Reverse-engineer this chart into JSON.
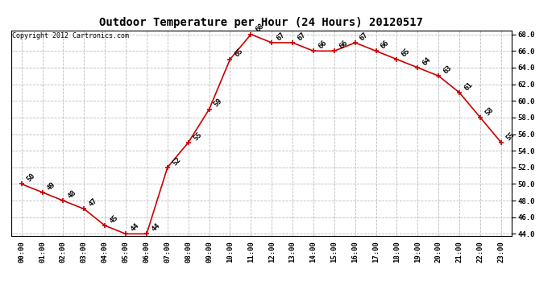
{
  "title": "Outdoor Temperature per Hour (24 Hours) 20120517",
  "copyright": "Copyright 2012 Cartronics.com",
  "hours": [
    "00:00",
    "01:00",
    "02:00",
    "03:00",
    "04:00",
    "05:00",
    "06:00",
    "07:00",
    "08:00",
    "09:00",
    "10:00",
    "11:00",
    "12:00",
    "13:00",
    "14:00",
    "15:00",
    "16:00",
    "17:00",
    "18:00",
    "19:00",
    "20:00",
    "21:00",
    "22:00",
    "23:00"
  ],
  "temps": [
    50,
    49,
    48,
    47,
    45,
    44,
    44,
    52,
    55,
    59,
    65,
    68,
    67,
    67,
    66,
    66,
    67,
    66,
    65,
    64,
    63,
    61,
    58,
    55
  ],
  "line_color": "#cc0000",
  "marker_color": "#cc0000",
  "bg_color": "#ffffff",
  "grid_color": "#bbbbbb",
  "ylim_min": 44.0,
  "ylim_max": 68.0,
  "ytick_step": 2.0,
  "title_fontsize": 10,
  "label_fontsize": 6.5,
  "annotation_fontsize": 6.5,
  "copyright_fontsize": 6
}
